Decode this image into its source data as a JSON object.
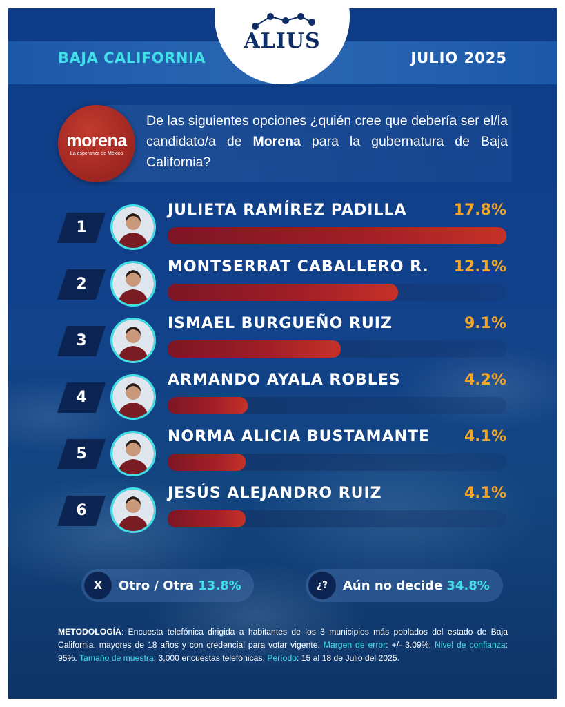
{
  "header": {
    "region": "BAJA CALIFORNIA",
    "date": "JULIO 2025",
    "brand": "ALIUS"
  },
  "party": {
    "name": "morena",
    "tagline": "La esperanza de México"
  },
  "question": {
    "part1": "De las siguientes opciones ",
    "part2": "¿quién cree que debería ser el/la candidato/a de ",
    "party": "Morena",
    "part3": " para la gubernatura de Baja California?"
  },
  "chart_data": {
    "type": "bar",
    "categories": [
      "JULIETA RAMÍREZ PADILLA",
      "MONTSERRAT CABALLERO R.",
      "ISMAEL BURGUEÑO RUIZ",
      "ARMANDO AYALA ROBLES",
      "NORMA ALICIA BUSTAMANTE",
      "JESÚS ALEJANDRO RUIZ"
    ],
    "values": [
      17.8,
      12.1,
      9.1,
      4.2,
      4.1,
      4.1
    ],
    "value_labels": [
      "17.8%",
      "12.1%",
      "9.1%",
      "4.2%",
      "4.1%",
      "4.1%"
    ],
    "ranks": [
      "1",
      "2",
      "3",
      "4",
      "5",
      "6"
    ],
    "title": "",
    "xlabel": "",
    "ylabel": "",
    "xlim": [
      0,
      17.8
    ],
    "orientation": "horizontal",
    "colors": {
      "bar": "#a31f27",
      "value": "#f5a524",
      "accent": "#3fe0e6"
    }
  },
  "others": [
    {
      "icon": "X",
      "label": "Otro / Otra",
      "value": "13.8%"
    },
    {
      "icon": "¿?",
      "label": "Aún no decide",
      "value": "34.8%"
    }
  ],
  "methodology": {
    "h1": "METODOLOGÍA",
    "t1": ": Encuesta telefónica dirigida a habitantes de los 3 municipios más poblados del estado de Baja California, mayores de 18 años y con credencial para votar vigente. ",
    "h2": "Margen de error",
    "t2": ": +/- 3.09%. ",
    "h3": "Nivel de confianza",
    "t3": ": 95%. ",
    "h4": "Tamaño de muestra",
    "t4": ": 3,000 encuestas telefónicas. ",
    "h5": "Período",
    "t5": ": 15  al 18 de Julio del 2025."
  }
}
